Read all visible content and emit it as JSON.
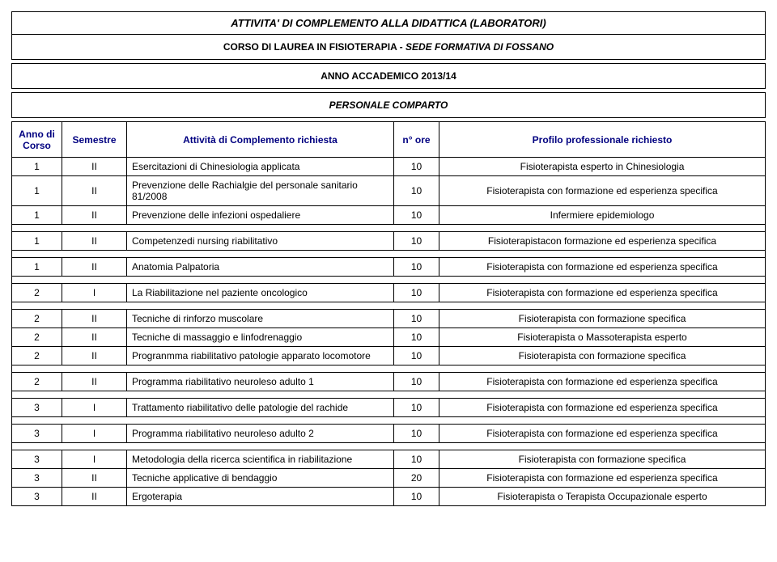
{
  "header": {
    "title": "ATTIVITA' DI COMPLEMENTO ALLA DIDATTICA (LABORATORI)",
    "corso_label": "CORSO DI LAUREA IN FISIOTERAPIA - ",
    "sede_label": "SEDE FORMATIVA DI FOSSANO",
    "anno": "ANNO ACCADEMICO 2013/14",
    "comparto": "PERSONALE COMPARTO"
  },
  "columns": {
    "anno": "Anno di Corso",
    "semestre": "Semestre",
    "attivita": "Attività di Complemento richiesta",
    "ore": "n° ore",
    "profilo": "Profilo professionale richiesto"
  },
  "colors": {
    "border": "#000000",
    "header_text": "#000080",
    "background": "#ffffff"
  },
  "groups": [
    {
      "rows": [
        {
          "anno": "1",
          "sem": "II",
          "att": "Esercitazioni di Chinesiologia applicata",
          "ore": "10",
          "prof": "Fisioterapista esperto in Chinesiologia"
        },
        {
          "anno": "1",
          "sem": "II",
          "att": "Prevenzione delle Rachialgie del personale sanitario 81/2008",
          "ore": "10",
          "prof": "Fisioterapista con formazione ed esperienza specifica"
        },
        {
          "anno": "1",
          "sem": "II",
          "att": "Prevenzione delle infezioni ospedaliere",
          "ore": "10",
          "prof": "Infermiere epidemiologo"
        }
      ]
    },
    {
      "rows": [
        {
          "anno": "1",
          "sem": "II",
          "att": "Competenzedi nursing riabilitativo",
          "ore": "10",
          "prof": "Fisioterapistacon formazione ed esperienza specifica"
        }
      ]
    },
    {
      "rows": [
        {
          "anno": "1",
          "sem": "II",
          "att": "Anatomia Palpatoria",
          "ore": "10",
          "prof": "Fisioterapista con formazione ed esperienza specifica"
        }
      ]
    },
    {
      "rows": [
        {
          "anno": "2",
          "sem": "I",
          "att": "La Riabilitazione nel paziente oncologico",
          "ore": "10",
          "prof": "Fisioterapista con formazione ed esperienza specifica"
        }
      ]
    },
    {
      "rows": [
        {
          "anno": "2",
          "sem": "II",
          "att": "Tecniche di rinforzo muscolare",
          "ore": "10",
          "prof": "Fisioterapista con formazione specifica"
        },
        {
          "anno": "2",
          "sem": "II",
          "att": "Tecniche di massaggio e linfodrenaggio",
          "ore": "10",
          "prof": "Fisioterapista o Massoterapista esperto"
        },
        {
          "anno": "2",
          "sem": "II",
          "att": "Progranmma riabilitativo patologie apparato locomotore",
          "ore": "10",
          "prof": "Fisioterapista con formazione specifica"
        }
      ]
    },
    {
      "rows": [
        {
          "anno": "2",
          "sem": "II",
          "att": "Programma riabilitativo neuroleso adulto 1",
          "ore": "10",
          "prof": "Fisioterapista con formazione ed esperienza specifica"
        }
      ]
    },
    {
      "rows": [
        {
          "anno": "3",
          "sem": "I",
          "att": "Trattamento riabilitativo delle patologie del rachide",
          "ore": "10",
          "prof": "Fisioterapista con formazione ed esperienza specifica"
        }
      ]
    },
    {
      "rows": [
        {
          "anno": "3",
          "sem": "I",
          "att": "Programma riabilitativo neuroleso adulto 2",
          "ore": "10",
          "prof": "Fisioterapista con formazione ed esperienza specifica"
        }
      ]
    },
    {
      "rows": [
        {
          "anno": "3",
          "sem": "I",
          "att": "Metodologia della ricerca scientifica in riabilitazione",
          "ore": "10",
          "prof": "Fisioterapista con formazione specifica"
        },
        {
          "anno": "3",
          "sem": "II",
          "att": "Tecniche applicative di bendaggio",
          "ore": "20",
          "prof": "Fisioterapista con formazione ed esperienza specifica"
        },
        {
          "anno": "3",
          "sem": "II",
          "att": "Ergoterapia",
          "ore": "10",
          "prof": "Fisioterapista o Terapista Occupazionale esperto"
        }
      ]
    }
  ]
}
